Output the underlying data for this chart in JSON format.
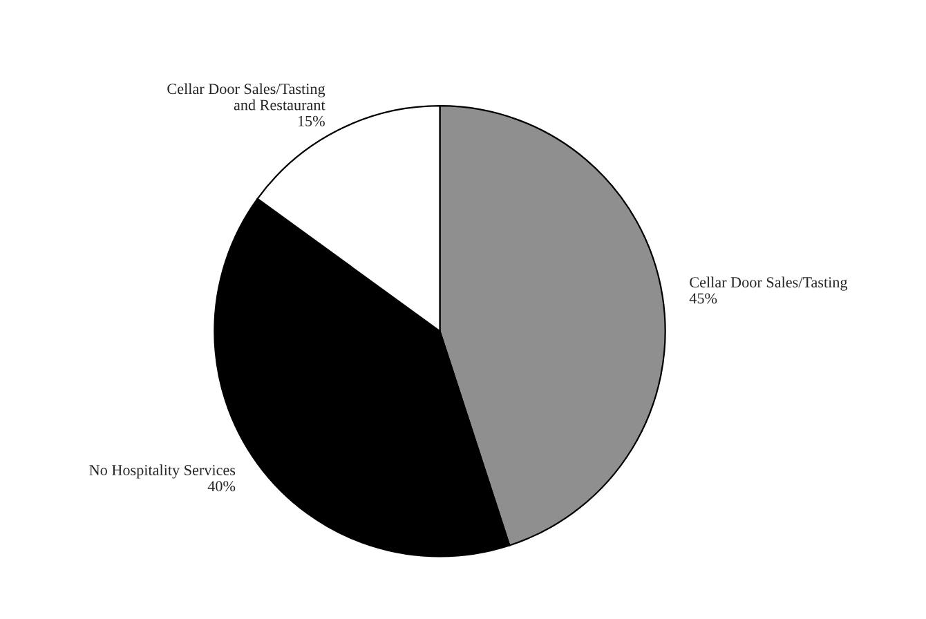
{
  "chart_data": {
    "type": "pie",
    "categories": [
      "Cellar Door Sales/Tasting",
      "No Hospitality Services",
      "Cellar Door Sales/Tasting\nand Restaurant"
    ],
    "values": [
      45,
      40,
      15
    ],
    "value_labels": [
      "45%",
      "40%",
      "15%"
    ],
    "colors": [
      "#8f8f8f",
      "#000000",
      "#ffffff"
    ],
    "legend": false
  }
}
